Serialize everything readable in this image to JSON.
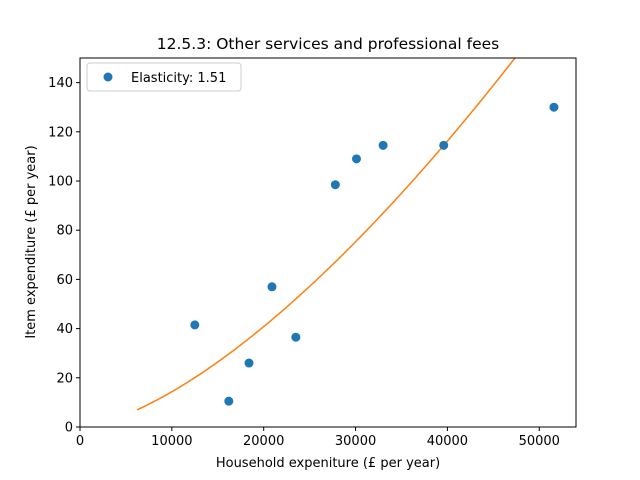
{
  "chart_data": {
    "type": "scatter",
    "title": "12.5.3: Other services and professional fees",
    "xlabel": "Household expeniture (£ per year)",
    "ylabel": "Item expenditure (£ per year)",
    "xlim": [
      0,
      54000
    ],
    "ylim": [
      0,
      150
    ],
    "xticks": [
      0,
      10000,
      20000,
      30000,
      40000,
      50000
    ],
    "yticks": [
      0,
      20,
      40,
      60,
      80,
      100,
      120,
      140
    ],
    "grid": false,
    "legend_position": "upper-left",
    "series": [
      {
        "name": "Elasticity: 1.51",
        "kind": "scatter",
        "color": "#1f77b4",
        "x": [
          12500,
          16200,
          18400,
          20900,
          23500,
          27800,
          30100,
          33000,
          39600,
          51600
        ],
        "y": [
          41.5,
          10.5,
          26,
          57,
          36.5,
          98.5,
          109,
          114.5,
          114.5,
          130
        ]
      },
      {
        "kind": "line",
        "color": "#ff7f0e",
        "elasticity": 1.51,
        "reference_x": 39600,
        "reference_y": 114.5,
        "x_start": 6200,
        "x_end": 47500
      }
    ]
  }
}
